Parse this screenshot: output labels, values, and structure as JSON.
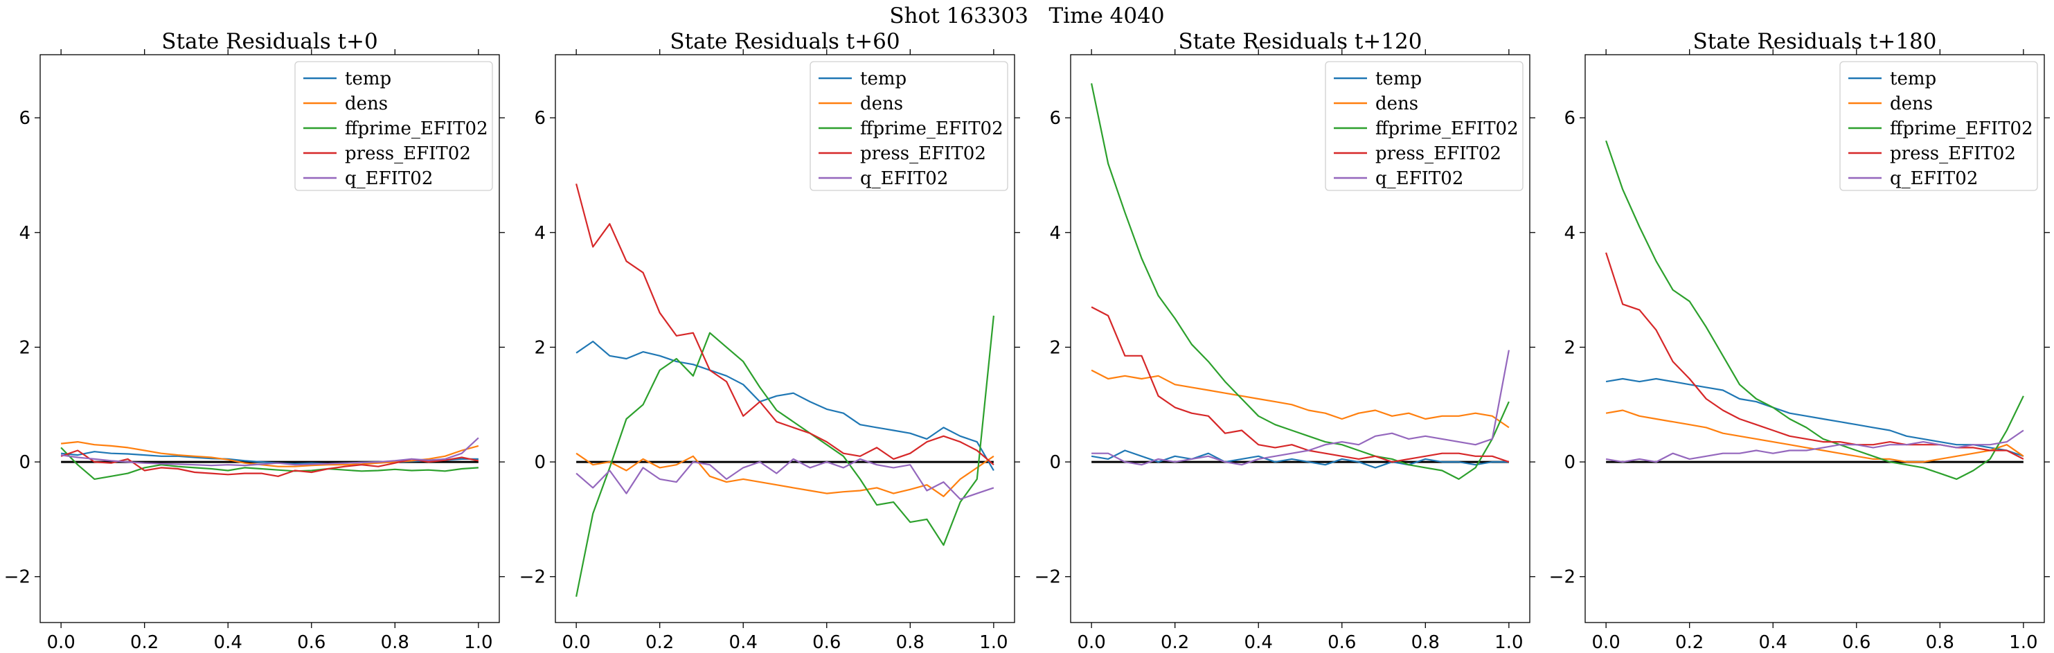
{
  "figure": {
    "title": "Shot 163303   Time 4040"
  },
  "colors": {
    "temp": "#1f77b4",
    "dens": "#ff7f0e",
    "ffprime_EFIT02": "#2ca02c",
    "press_EFIT02": "#d62728",
    "q_EFIT02": "#9467bd",
    "zero_line": "#000000"
  },
  "chart_data": [
    {
      "type": "line",
      "title": "State Residuals t+0",
      "xlabel": "",
      "ylabel": "",
      "xlim": [
        -0.05,
        1.05
      ],
      "ylim": [
        -2.8,
        7.1
      ],
      "xticks": [
        "0.0",
        "0.2",
        "0.4",
        "0.6",
        "0.8",
        "1.0"
      ],
      "yticks": [
        "−2",
        "0",
        "2",
        "4",
        "6"
      ],
      "grid": false,
      "legend": "top-right",
      "x": [
        0,
        0.04,
        0.08,
        0.12,
        0.16,
        0.2,
        0.24,
        0.28,
        0.32,
        0.36,
        0.4,
        0.44,
        0.48,
        0.52,
        0.56,
        0.6,
        0.64,
        0.68,
        0.72,
        0.76,
        0.8,
        0.84,
        0.88,
        0.92,
        0.96,
        1
      ],
      "series": [
        {
          "name": "temp",
          "values": [
            0.15,
            0.12,
            0.18,
            0.15,
            0.14,
            0.12,
            0.1,
            0.1,
            0.08,
            0.06,
            0.05,
            0.02,
            0.0,
            -0.02,
            -0.03,
            -0.02,
            -0.03,
            -0.02,
            -0.01,
            0.0,
            0.0,
            0.01,
            0.02,
            0.03,
            0.05,
            0.05
          ]
        },
        {
          "name": "dens",
          "values": [
            0.32,
            0.35,
            0.3,
            0.28,
            0.25,
            0.2,
            0.15,
            0.12,
            0.1,
            0.08,
            0.04,
            -0.02,
            -0.05,
            -0.08,
            -0.08,
            -0.06,
            -0.05,
            -0.05,
            -0.04,
            -0.02,
            0.0,
            0.02,
            0.05,
            0.1,
            0.2,
            0.28
          ]
        },
        {
          "name": "ffprime_EFIT02",
          "values": [
            0.25,
            -0.05,
            -0.3,
            -0.25,
            -0.2,
            -0.1,
            -0.05,
            -0.08,
            -0.1,
            -0.12,
            -0.15,
            -0.1,
            -0.12,
            -0.14,
            -0.16,
            -0.15,
            -0.12,
            -0.14,
            -0.16,
            -0.15,
            -0.13,
            -0.15,
            -0.14,
            -0.16,
            -0.12,
            -0.1
          ]
        },
        {
          "name": "press_EFIT02",
          "values": [
            0.1,
            0.2,
            0.0,
            -0.02,
            0.05,
            -0.15,
            -0.1,
            -0.12,
            -0.18,
            -0.2,
            -0.22,
            -0.2,
            -0.2,
            -0.25,
            -0.15,
            -0.18,
            -0.12,
            -0.08,
            -0.05,
            -0.08,
            -0.02,
            0.05,
            0.0,
            0.03,
            0.08,
            0.02
          ]
        },
        {
          "name": "q_EFIT02",
          "values": [
            0.12,
            0.08,
            0.05,
            0.02,
            0.0,
            -0.02,
            -0.03,
            -0.04,
            -0.05,
            -0.06,
            -0.05,
            -0.06,
            -0.04,
            -0.02,
            -0.05,
            -0.04,
            -0.03,
            -0.02,
            -0.01,
            0.0,
            0.02,
            0.05,
            0.03,
            0.05,
            0.15,
            0.42
          ]
        }
      ]
    },
    {
      "type": "line",
      "title": "State Residuals t+60",
      "xlabel": "",
      "ylabel": "",
      "xlim": [
        -0.05,
        1.05
      ],
      "ylim": [
        -2.8,
        7.1
      ],
      "xticks": [
        "0.0",
        "0.2",
        "0.4",
        "0.6",
        "0.8",
        "1.0"
      ],
      "yticks": [
        "−2",
        "0",
        "2",
        "4",
        "6"
      ],
      "grid": false,
      "legend": "top-right",
      "x": [
        0,
        0.04,
        0.08,
        0.12,
        0.16,
        0.2,
        0.24,
        0.28,
        0.32,
        0.36,
        0.4,
        0.44,
        0.48,
        0.52,
        0.56,
        0.6,
        0.64,
        0.68,
        0.72,
        0.76,
        0.8,
        0.84,
        0.88,
        0.92,
        0.96,
        1
      ],
      "series": [
        {
          "name": "temp",
          "values": [
            1.9,
            2.1,
            1.85,
            1.8,
            1.92,
            1.85,
            1.75,
            1.7,
            1.6,
            1.5,
            1.35,
            1.05,
            1.15,
            1.2,
            1.05,
            0.92,
            0.85,
            0.65,
            0.6,
            0.55,
            0.5,
            0.4,
            0.6,
            0.45,
            0.35,
            -0.15
          ]
        },
        {
          "name": "dens",
          "values": [
            0.15,
            -0.05,
            0.0,
            -0.15,
            0.05,
            -0.1,
            -0.05,
            0.1,
            -0.25,
            -0.35,
            -0.3,
            -0.35,
            -0.4,
            -0.45,
            -0.5,
            -0.55,
            -0.52,
            -0.5,
            -0.45,
            -0.55,
            -0.48,
            -0.4,
            -0.6,
            -0.3,
            -0.1,
            0.1
          ]
        },
        {
          "name": "ffprime_EFIT02",
          "values": [
            -2.35,
            -0.9,
            -0.1,
            0.75,
            1.0,
            1.6,
            1.8,
            1.5,
            2.25,
            2.0,
            1.75,
            1.3,
            0.9,
            0.7,
            0.5,
            0.3,
            0.1,
            -0.3,
            -0.75,
            -0.7,
            -1.05,
            -1.0,
            -1.45,
            -0.7,
            -0.3,
            2.55
          ]
        },
        {
          "name": "press_EFIT02",
          "values": [
            4.85,
            3.75,
            4.15,
            3.5,
            3.3,
            2.6,
            2.2,
            2.25,
            1.6,
            1.4,
            0.8,
            1.05,
            0.7,
            0.6,
            0.5,
            0.35,
            0.15,
            0.1,
            0.25,
            0.05,
            0.15,
            0.35,
            0.45,
            0.35,
            0.2,
            -0.05
          ]
        },
        {
          "name": "q_EFIT02",
          "values": [
            -0.2,
            -0.45,
            -0.15,
            -0.55,
            -0.1,
            -0.3,
            -0.35,
            0.0,
            -0.05,
            -0.3,
            -0.1,
            0.0,
            -0.2,
            0.05,
            -0.1,
            0.0,
            -0.1,
            0.05,
            -0.05,
            -0.1,
            -0.05,
            -0.5,
            -0.35,
            -0.65,
            -0.55,
            -0.45
          ]
        }
      ]
    },
    {
      "type": "line",
      "title": "State Residuals t+120",
      "xlabel": "",
      "ylabel": "",
      "xlim": [
        -0.05,
        1.05
      ],
      "ylim": [
        -2.8,
        7.1
      ],
      "xticks": [
        "0.0",
        "0.2",
        "0.4",
        "0.6",
        "0.8",
        "1.0"
      ],
      "yticks": [
        "−2",
        "0",
        "2",
        "4",
        "6"
      ],
      "grid": false,
      "legend": "top-right",
      "x": [
        0,
        0.04,
        0.08,
        0.12,
        0.16,
        0.2,
        0.24,
        0.28,
        0.32,
        0.36,
        0.4,
        0.44,
        0.48,
        0.52,
        0.56,
        0.6,
        0.64,
        0.68,
        0.72,
        0.76,
        0.8,
        0.84,
        0.88,
        0.92,
        0.96,
        1
      ],
      "series": [
        {
          "name": "temp",
          "values": [
            0.1,
            0.05,
            0.2,
            0.1,
            0.0,
            0.1,
            0.05,
            0.15,
            0.0,
            0.05,
            0.1,
            0.0,
            0.05,
            0.0,
            -0.05,
            0.05,
            0.0,
            -0.1,
            0.0,
            -0.05,
            0.05,
            0.0,
            0.0,
            -0.05,
            0.0,
            0.0
          ]
        },
        {
          "name": "dens",
          "values": [
            1.6,
            1.45,
            1.5,
            1.45,
            1.5,
            1.35,
            1.3,
            1.25,
            1.2,
            1.15,
            1.1,
            1.05,
            1.0,
            0.9,
            0.85,
            0.75,
            0.85,
            0.9,
            0.8,
            0.85,
            0.75,
            0.8,
            0.8,
            0.85,
            0.8,
            0.6
          ]
        },
        {
          "name": "ffprime_EFIT02",
          "values": [
            6.6,
            5.2,
            4.35,
            3.55,
            2.9,
            2.5,
            2.05,
            1.75,
            1.4,
            1.1,
            0.8,
            0.65,
            0.55,
            0.45,
            0.35,
            0.3,
            0.2,
            0.1,
            0.05,
            -0.05,
            -0.1,
            -0.15,
            -0.3,
            -0.1,
            0.4,
            1.05
          ]
        },
        {
          "name": "press_EFIT02",
          "values": [
            2.7,
            2.55,
            1.85,
            1.85,
            1.15,
            0.95,
            0.85,
            0.8,
            0.5,
            0.55,
            0.3,
            0.25,
            0.3,
            0.2,
            0.15,
            0.1,
            0.05,
            0.1,
            0.0,
            0.05,
            0.1,
            0.15,
            0.15,
            0.1,
            0.1,
            0.0
          ]
        },
        {
          "name": "q_EFIT02",
          "values": [
            0.15,
            0.15,
            0.0,
            -0.05,
            0.05,
            0.0,
            0.05,
            0.1,
            0.0,
            -0.05,
            0.05,
            0.1,
            0.15,
            0.2,
            0.3,
            0.35,
            0.3,
            0.45,
            0.5,
            0.4,
            0.45,
            0.4,
            0.35,
            0.3,
            0.4,
            1.95
          ]
        }
      ]
    },
    {
      "type": "line",
      "title": "State Residuals t+180",
      "xlabel": "",
      "ylabel": "",
      "xlim": [
        -0.05,
        1.05
      ],
      "ylim": [
        -2.8,
        7.1
      ],
      "xticks": [
        "0.0",
        "0.2",
        "0.4",
        "0.6",
        "0.8",
        "1.0"
      ],
      "yticks": [
        "−2",
        "0",
        "2",
        "4",
        "6"
      ],
      "grid": false,
      "legend": "top-right",
      "x": [
        0,
        0.04,
        0.08,
        0.12,
        0.16,
        0.2,
        0.24,
        0.28,
        0.32,
        0.36,
        0.4,
        0.44,
        0.48,
        0.52,
        0.56,
        0.6,
        0.64,
        0.68,
        0.72,
        0.76,
        0.8,
        0.84,
        0.88,
        0.92,
        0.96,
        1
      ],
      "series": [
        {
          "name": "temp",
          "values": [
            1.4,
            1.45,
            1.4,
            1.45,
            1.4,
            1.35,
            1.3,
            1.25,
            1.1,
            1.05,
            0.95,
            0.85,
            0.8,
            0.75,
            0.7,
            0.65,
            0.6,
            0.55,
            0.45,
            0.4,
            0.35,
            0.3,
            0.3,
            0.25,
            0.2,
            0.1
          ]
        },
        {
          "name": "dens",
          "values": [
            0.85,
            0.9,
            0.8,
            0.75,
            0.7,
            0.65,
            0.6,
            0.5,
            0.45,
            0.4,
            0.35,
            0.3,
            0.25,
            0.2,
            0.15,
            0.1,
            0.05,
            0.05,
            0.0,
            0.0,
            0.05,
            0.1,
            0.15,
            0.2,
            0.3,
            0.1
          ]
        },
        {
          "name": "ffprime_EFIT02",
          "values": [
            5.6,
            4.75,
            4.1,
            3.5,
            3.0,
            2.8,
            2.35,
            1.85,
            1.35,
            1.1,
            0.95,
            0.75,
            0.6,
            0.4,
            0.3,
            0.2,
            0.1,
            0.0,
            -0.05,
            -0.1,
            -0.2,
            -0.3,
            -0.15,
            0.05,
            0.55,
            1.15
          ]
        },
        {
          "name": "press_EFIT02",
          "values": [
            3.65,
            2.75,
            2.65,
            2.3,
            1.75,
            1.45,
            1.1,
            0.9,
            0.75,
            0.65,
            0.55,
            0.45,
            0.4,
            0.35,
            0.35,
            0.3,
            0.3,
            0.35,
            0.3,
            0.3,
            0.3,
            0.25,
            0.25,
            0.2,
            0.2,
            0.05
          ]
        },
        {
          "name": "q_EFIT02",
          "values": [
            0.05,
            0.0,
            0.05,
            0.0,
            0.15,
            0.05,
            0.1,
            0.15,
            0.15,
            0.2,
            0.15,
            0.2,
            0.2,
            0.25,
            0.3,
            0.3,
            0.25,
            0.3,
            0.3,
            0.35,
            0.3,
            0.25,
            0.3,
            0.3,
            0.35,
            0.55
          ]
        }
      ]
    }
  ]
}
